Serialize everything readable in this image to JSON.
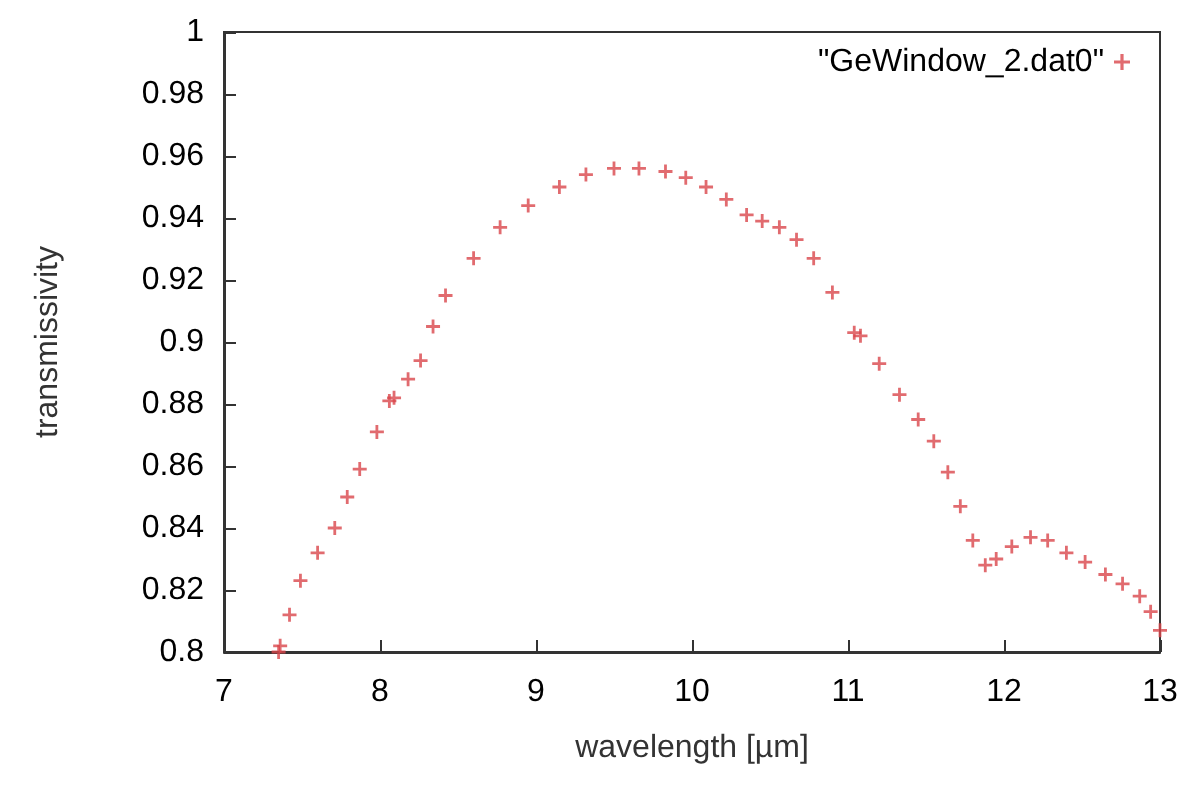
{
  "chart_data": {
    "type": "scatter",
    "xlabel": "wavelength [µm]",
    "ylabel": "transmissivity",
    "x": [
      7.35,
      7.36,
      7.42,
      7.49,
      7.6,
      7.71,
      7.79,
      7.87,
      7.98,
      8.06,
      8.09,
      8.18,
      8.26,
      8.34,
      8.42,
      8.6,
      8.77,
      8.95,
      9.15,
      9.32,
      9.5,
      9.66,
      9.83,
      9.96,
      10.09,
      10.22,
      10.35,
      10.45,
      10.56,
      10.67,
      10.78,
      10.9,
      11.04,
      11.08,
      11.2,
      11.33,
      11.45,
      11.55,
      11.64,
      11.72,
      11.8,
      11.88,
      11.95,
      12.05,
      12.17,
      12.28,
      12.4,
      12.52,
      12.65,
      12.76,
      12.87,
      12.94,
      13.0
    ],
    "series": [
      {
        "name": "\"GeWindow_2.dat0\"",
        "color": "#d9464b",
        "values": [
          0.8,
          0.802,
          0.812,
          0.823,
          0.832,
          0.84,
          0.85,
          0.859,
          0.871,
          0.881,
          0.882,
          0.888,
          0.894,
          0.905,
          0.915,
          0.927,
          0.937,
          0.944,
          0.95,
          0.954,
          0.956,
          0.956,
          0.955,
          0.953,
          0.95,
          0.946,
          0.941,
          0.939,
          0.937,
          0.933,
          0.927,
          0.916,
          0.903,
          0.902,
          0.893,
          0.883,
          0.875,
          0.868,
          0.858,
          0.847,
          0.836,
          0.828,
          0.83,
          0.834,
          0.837,
          0.836,
          0.832,
          0.829,
          0.825,
          0.822,
          0.818,
          0.813,
          0.807
        ]
      }
    ],
    "xlim": [
      7,
      13
    ],
    "xticks": [
      7,
      8,
      9,
      10,
      11,
      12,
      13
    ],
    "ylim": [
      0.8,
      1
    ],
    "yticks": [
      0.8,
      0.82,
      0.84,
      0.86,
      0.88,
      0.9,
      0.92,
      0.94,
      0.96,
      0.98,
      1
    ],
    "marker": "cross",
    "legend": "top right",
    "grid": false
  }
}
